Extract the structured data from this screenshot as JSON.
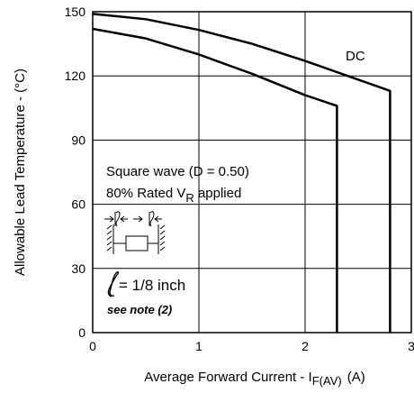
{
  "chart_data": {
    "type": "line",
    "xlabel": "Average Forward Current - I",
    "xlabel_sub": "F(AV)",
    "xlabel_unit": "(A)",
    "ylabel": "Allowable Lead Temperature - (°C)",
    "xlim": [
      0,
      3
    ],
    "ylim": [
      0,
      150
    ],
    "x_ticks": [
      0,
      1,
      2,
      3
    ],
    "y_ticks": [
      0,
      30,
      60,
      90,
      120,
      150
    ],
    "x_tick_labels": [
      "0",
      "1",
      "2",
      "3"
    ],
    "y_tick_labels": [
      "0",
      "30",
      "60",
      "90",
      "120",
      "150"
    ],
    "grid": true,
    "series": [
      {
        "name": "DC",
        "x": [
          0,
          0.5,
          1.0,
          1.5,
          2.0,
          2.4,
          2.8,
          2.8
        ],
        "y": [
          149,
          146.5,
          141.5,
          135,
          127,
          120,
          113,
          0
        ]
      },
      {
        "name": "",
        "x": [
          0,
          0.5,
          1.0,
          1.5,
          2.0,
          2.3,
          2.3
        ],
        "y": [
          142,
          137.5,
          130,
          121,
          111,
          106,
          0
        ]
      }
    ],
    "annotations": {
      "dc_label": "DC",
      "square_wave": "Square wave (D = 0.50)",
      "rated_prefix": "80% Rated V",
      "rated_sub": "R",
      "rated_suffix": " applied",
      "lead_label": "= 1/8 inch",
      "note": "see note (2)"
    }
  }
}
